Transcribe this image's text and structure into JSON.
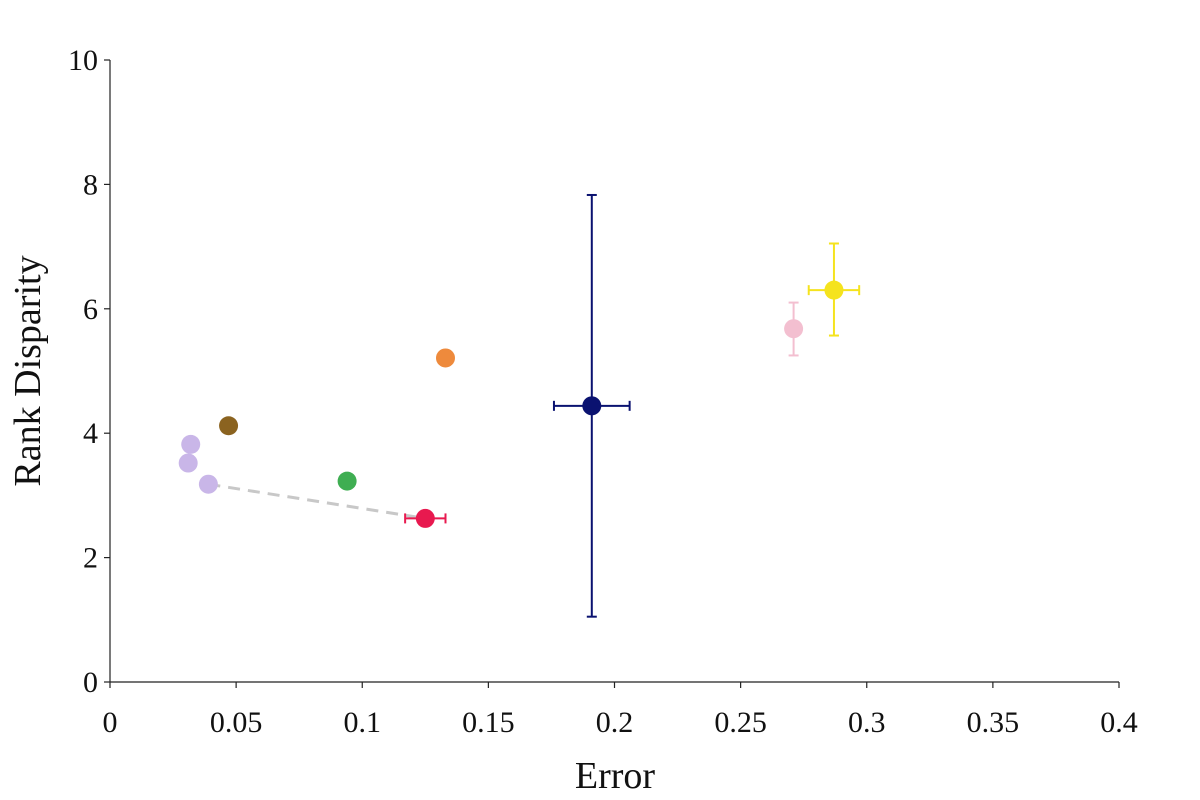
{
  "chart_data": {
    "type": "scatter",
    "title": "",
    "xlabel": "Error",
    "ylabel": "Rank Disparity",
    "xlim": [
      0,
      0.4
    ],
    "ylim": [
      0,
      10
    ],
    "x_ticks": [
      "0",
      "0.05",
      "0.1",
      "0.15",
      "0.2",
      "0.25",
      "0.3",
      "0.35",
      "0.4"
    ],
    "y_ticks": [
      "0",
      "2",
      "4",
      "6",
      "8",
      "10"
    ],
    "grid": false,
    "legend": "none",
    "points": [
      {
        "x": 0.032,
        "y": 3.82,
        "color": "#c9b6e8"
      },
      {
        "x": 0.031,
        "y": 3.52,
        "color": "#c9b6e8"
      },
      {
        "x": 0.039,
        "y": 3.18,
        "color": "#c9b6e8"
      },
      {
        "x": 0.047,
        "y": 4.12,
        "color": "#8b6320"
      },
      {
        "x": 0.094,
        "y": 3.23,
        "color": "#3fae52"
      },
      {
        "x": 0.125,
        "y": 2.63,
        "color": "#e8194f",
        "xerr": [
          0.117,
          0.133
        ]
      },
      {
        "x": 0.133,
        "y": 5.21,
        "color": "#ee8a3c"
      },
      {
        "x": 0.191,
        "y": 4.44,
        "color": "#0a1270",
        "xerr": [
          0.176,
          0.206
        ],
        "yerr": [
          1.05,
          7.83
        ]
      },
      {
        "x": 0.271,
        "y": 5.68,
        "color": "#f3bfd0",
        "yerr": [
          5.25,
          6.1
        ]
      },
      {
        "x": 0.287,
        "y": 6.3,
        "color": "#f5e31e",
        "xerr": [
          0.277,
          0.297
        ],
        "yerr": [
          5.57,
          7.05
        ]
      }
    ],
    "lines": [
      {
        "from": [
          0.039,
          3.18
        ],
        "to": [
          0.125,
          2.63
        ],
        "style": "dashed",
        "color": "#c8c8c8"
      }
    ]
  }
}
